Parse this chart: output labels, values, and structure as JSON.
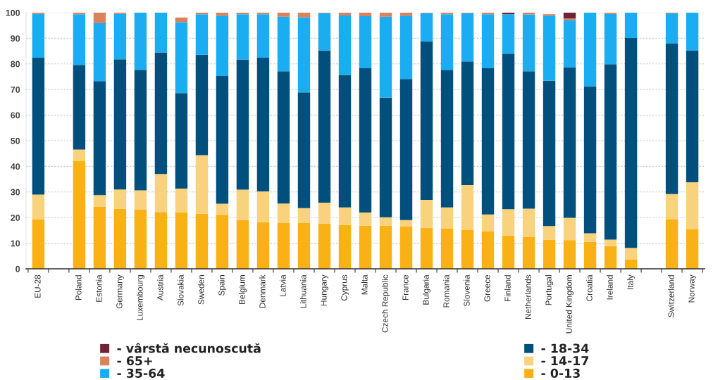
{
  "chart_data": {
    "type": "bar",
    "stacked": true,
    "categories": [
      "EU-28",
      null,
      "Poland",
      "Estonia",
      "Germany",
      "Luxembourg",
      "Austria",
      "Slovakia",
      "Sweden",
      "Spain",
      "Belgium",
      "Denmark",
      "Latvia",
      "Lithuania",
      "Hungary",
      "Cyprus",
      "Malta",
      "Czech Republic",
      "France",
      "Bulgaria",
      "Romania",
      "Slovenia",
      "Greece",
      "Finland",
      "Netherlands",
      "Portugal",
      "United Kingdom",
      "Croatia",
      "Ireland",
      "Italy",
      null,
      "Switzerland",
      "Norway"
    ],
    "series": [
      {
        "name": "- 0-13",
        "color": "#f9b115",
        "values": [
          19.2,
          null,
          42.0,
          24.3,
          23.5,
          23.1,
          22.2,
          22.0,
          21.5,
          21.1,
          19.0,
          18.2,
          18.0,
          18.0,
          17.6,
          17.1,
          16.9,
          16.9,
          16.5,
          16.0,
          15.8,
          15.1,
          14.6,
          13.0,
          12.4,
          11.4,
          11.2,
          10.5,
          8.9,
          3.6,
          null,
          19.2,
          15.5
        ]
      },
      {
        "name": "- 14-17",
        "color": "#f8d27c",
        "values": [
          9.8,
          null,
          4.6,
          4.5,
          7.5,
          7.5,
          14.8,
          9.3,
          22.9,
          4.3,
          11.9,
          12.0,
          7.5,
          5.7,
          8.2,
          6.9,
          5.1,
          3.2,
          2.5,
          10.9,
          8.2,
          17.6,
          6.6,
          10.3,
          11.1,
          5.3,
          8.7,
          3.4,
          2.5,
          4.6,
          null,
          10.0,
          18.3
        ]
      },
      {
        "name": "- 18-34",
        "color": "#004f7c",
        "values": [
          53.4,
          null,
          33.0,
          44.5,
          50.8,
          47.1,
          47.5,
          37.3,
          39.2,
          49.9,
          50.8,
          52.2,
          51.6,
          45.2,
          59.4,
          51.7,
          56.3,
          46.7,
          55.1,
          61.9,
          53.7,
          48.3,
          57.1,
          60.7,
          53.6,
          56.7,
          58.8,
          57.3,
          68.5,
          81.9,
          null,
          58.7,
          51.5
        ]
      },
      {
        "name": "- 35-64",
        "color": "#1aadf2",
        "values": [
          17.1,
          null,
          19.8,
          22.6,
          17.7,
          22.3,
          15.5,
          27.7,
          15.8,
          23.5,
          17.7,
          17.0,
          21.3,
          29.3,
          14.6,
          23.2,
          20.3,
          31.6,
          24.7,
          11.0,
          21.7,
          18.8,
          21.1,
          15.4,
          22.2,
          25.4,
          18.3,
          28.8,
          19.6,
          9.9,
          null,
          11.8,
          14.7
        ]
      },
      {
        "name": "- 65+",
        "color": "#d9825c",
        "values": [
          0.5,
          null,
          0.6,
          4.1,
          0.5,
          null,
          null,
          1.8,
          0.6,
          1.2,
          0.6,
          0.6,
          1.6,
          1.8,
          0.2,
          1.1,
          1.4,
          1.6,
          1.2,
          0.2,
          0.6,
          0.2,
          0.6,
          null,
          0.7,
          0.6,
          0.7,
          null,
          0.5,
          null,
          null,
          0.3,
          null
        ]
      },
      {
        "name": "- vârstă necunoscută",
        "color": "#6e2336",
        "values": [
          null,
          null,
          null,
          null,
          null,
          null,
          null,
          null,
          null,
          null,
          null,
          null,
          null,
          null,
          null,
          null,
          null,
          null,
          null,
          null,
          null,
          null,
          null,
          0.6,
          null,
          null,
          2.3,
          null,
          null,
          null,
          null,
          null,
          null
        ]
      }
    ],
    "ylim": [
      0,
      100
    ],
    "yticks": [
      0,
      10,
      20,
      30,
      40,
      50,
      60,
      70,
      80,
      90,
      100
    ],
    "grid": "y",
    "legend": "bottom"
  }
}
